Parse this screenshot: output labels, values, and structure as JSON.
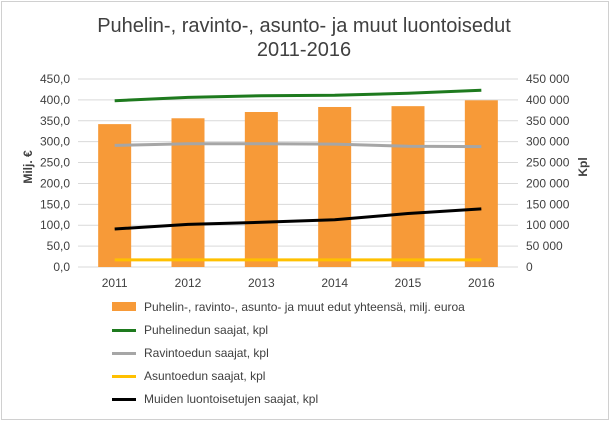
{
  "title_line1": "Puhelin-, ravinto-, asunto- ja muut luontoisedut",
  "title_line2": "2011-2016",
  "chart_data": {
    "type": "bar",
    "categories": [
      "2011",
      "2012",
      "2013",
      "2014",
      "2015",
      "2016"
    ],
    "y_left_label": "Milj. €",
    "y_right_label": "Kpl",
    "y_left_range": [
      0,
      450
    ],
    "y_right_range": [
      0,
      450000
    ],
    "y_left_ticks": [
      "0,0",
      "50,0",
      "100,0",
      "150,0",
      "200,0",
      "250,0",
      "300,0",
      "350,0",
      "400,0",
      "450,0"
    ],
    "y_right_ticks": [
      "0",
      "50 000",
      "100 000",
      "150 000",
      "200 000",
      "250 000",
      "300 000",
      "350 000",
      "400 000",
      "450 000"
    ],
    "grid": true,
    "legend_position": "bottom",
    "series": [
      {
        "name": "Puhelin-, ravinto-, asunto- ja muut edut yhteensä, milj. euroa",
        "kind": "bar",
        "axis": "left",
        "color": "#f79a38",
        "values": [
          342,
          356,
          371,
          383,
          385,
          399
        ]
      },
      {
        "name": "Puhelinedun saajat, kpl",
        "kind": "line",
        "axis": "right",
        "color": "#1e7a1e",
        "values": [
          398000,
          406000,
          410000,
          411000,
          416000,
          423000
        ]
      },
      {
        "name": "Ravintoedun saajat, kpl",
        "kind": "line",
        "axis": "right",
        "color": "#a6a6a6",
        "values": [
          291000,
          295000,
          295000,
          294000,
          289000,
          288000
        ]
      },
      {
        "name": "Asuntoedun saajat, kpl",
        "kind": "line",
        "axis": "right",
        "color": "#ffc000",
        "values": [
          17000,
          17000,
          17000,
          17000,
          17000,
          17000
        ]
      },
      {
        "name": "Muiden luontoisetujen saajat, kpl",
        "kind": "line",
        "axis": "right",
        "color": "#000000",
        "values": [
          91000,
          102000,
          107000,
          113000,
          128000,
          139000
        ]
      }
    ]
  }
}
